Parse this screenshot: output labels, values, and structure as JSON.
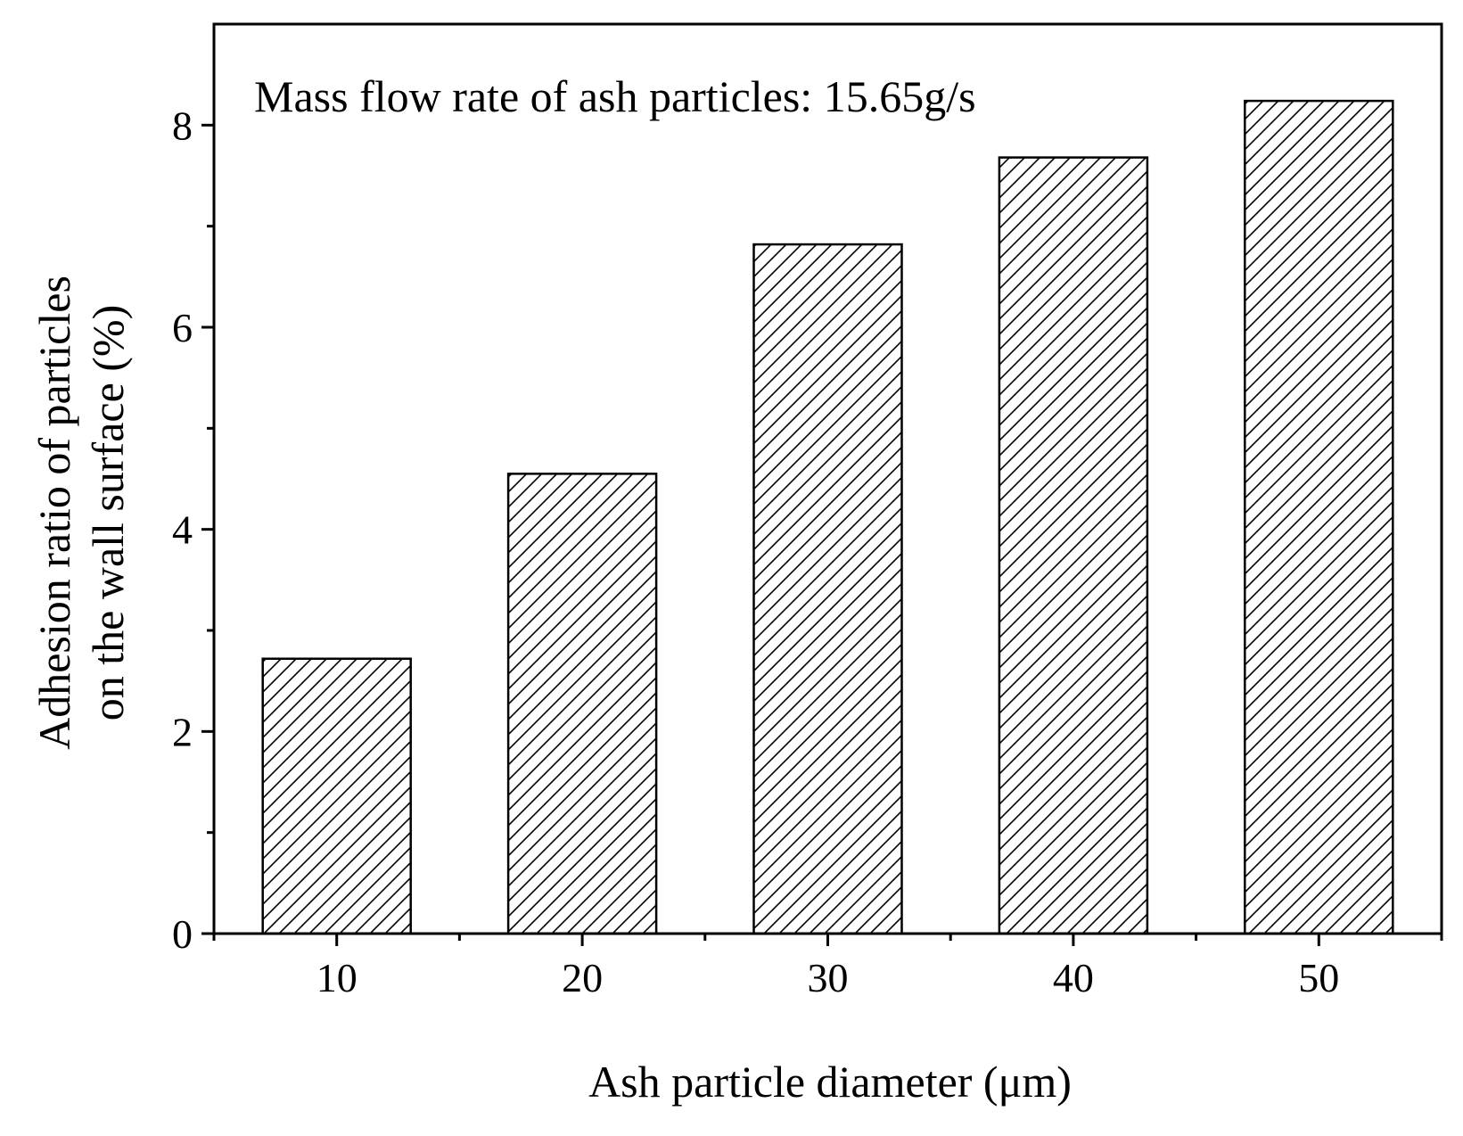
{
  "chart_data": {
    "type": "bar",
    "categories": [
      "10",
      "20",
      "30",
      "40",
      "50"
    ],
    "values": [
      2.72,
      4.55,
      6.82,
      7.68,
      8.24
    ],
    "title": "",
    "annotation": "Mass flow rate of ash particles: 15.65g/s",
    "xlabel": "Ash particle diameter (μm)",
    "ylabel_line1": "Adhesion ratio of particles",
    "ylabel_line2": "on the wall surface (%)",
    "ylim": [
      0,
      9.0
    ],
    "yticks": [
      0,
      2,
      4,
      6,
      8
    ],
    "grid": false,
    "legend": "none",
    "bar_fill": "hatched-diagonal",
    "colors": {
      "stroke": "#000000",
      "background": "#ffffff"
    }
  }
}
